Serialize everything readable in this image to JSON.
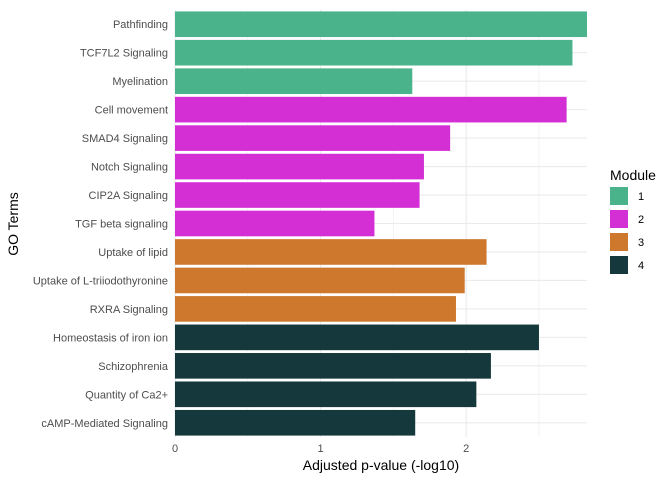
{
  "chart_data": {
    "type": "bar",
    "orientation": "horizontal",
    "xlabel": "Adjusted p-value (-log10)",
    "ylabel": "GO Terms",
    "xlim": [
      0,
      2.83
    ],
    "xticks": [
      "0",
      "1",
      "2"
    ],
    "grid": true,
    "legend": {
      "title": "Module",
      "position": "right",
      "entries": [
        {
          "label": "1",
          "color": "#4bb38b"
        },
        {
          "label": "2",
          "color": "#d42fd4"
        },
        {
          "label": "3",
          "color": "#ce782e"
        },
        {
          "label": "4",
          "color": "#14383b"
        }
      ]
    },
    "categories": [
      "Pathfinding",
      "TCF7L2 Signaling",
      "Myelination",
      "Cell movement",
      "SMAD4 Signaling",
      "Notch Signaling",
      "CIP2A Signaling",
      "TGF beta signaling",
      "Uptake of lipid",
      "Uptake of L-triiodothyronine",
      "RXRA Signaling",
      "Homeostasis of iron ion",
      "Schizophrenia",
      "Quantity of Ca2+",
      "cAMP-Mediated Signaling"
    ],
    "values": [
      2.83,
      2.73,
      1.63,
      2.69,
      1.89,
      1.71,
      1.68,
      1.37,
      2.14,
      1.99,
      1.93,
      2.5,
      2.17,
      2.07,
      1.65
    ],
    "modules": [
      "1",
      "1",
      "1",
      "2",
      "2",
      "2",
      "2",
      "2",
      "3",
      "3",
      "3",
      "4",
      "4",
      "4",
      "4"
    ]
  }
}
